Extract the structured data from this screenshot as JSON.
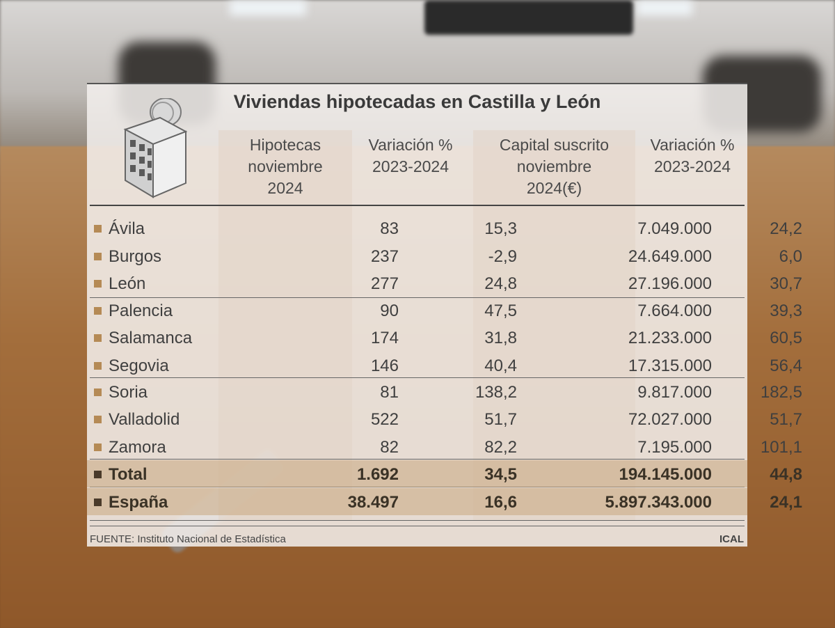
{
  "chart_data": {
    "type": "table",
    "title": "Viviendas hipotecadas en Castilla y León",
    "columns": [
      "",
      "Hipotecas noviembre 2024",
      "Variación % 2023-2024",
      "Capital suscrito noviembre 2024(€)",
      "Variación % 2023-2024"
    ],
    "header_lines": [
      [
        "Hipotecas",
        "noviembre",
        "2024"
      ],
      [
        "Variación %",
        "2023-2024"
      ],
      [
        "Capital suscrito",
        "noviembre",
        "2024(€)"
      ],
      [
        "Variación %",
        "2023-2024"
      ]
    ],
    "rows": [
      {
        "name": "Ávila",
        "hipotecas": "83",
        "var_hip": "15,3",
        "capital": "7.049.000",
        "var_cap": "24,2"
      },
      {
        "name": "Burgos",
        "hipotecas": "237",
        "var_hip": "-2,9",
        "capital": "24.649.000",
        "var_cap": "6,0"
      },
      {
        "name": "León",
        "hipotecas": "277",
        "var_hip": "24,8",
        "capital": "27.196.000",
        "var_cap": "30,7"
      },
      {
        "name": "Palencia",
        "hipotecas": "90",
        "var_hip": "47,5",
        "capital": "7.664.000",
        "var_cap": "39,3"
      },
      {
        "name": "Salamanca",
        "hipotecas": "174",
        "var_hip": "31,8",
        "capital": "21.233.000",
        "var_cap": "60,5"
      },
      {
        "name": "Segovia",
        "hipotecas": "146",
        "var_hip": "40,4",
        "capital": "17.315.000",
        "var_cap": "56,4"
      },
      {
        "name": "Soria",
        "hipotecas": "81",
        "var_hip": "138,2",
        "capital": "9.817.000",
        "var_cap": "182,5"
      },
      {
        "name": "Valladolid",
        "hipotecas": "522",
        "var_hip": "51,7",
        "capital": "72.027.000",
        "var_cap": "51,7"
      },
      {
        "name": "Zamora",
        "hipotecas": "82",
        "var_hip": "82,2",
        "capital": "7.195.000",
        "var_cap": "101,1"
      }
    ],
    "totals": [
      {
        "name": "Total",
        "hipotecas": "1.692",
        "var_hip": "34,5",
        "capital": "194.145.000",
        "var_cap": "44,8"
      },
      {
        "name": "España",
        "hipotecas": "38.497",
        "var_hip": "16,6",
        "capital": "5.897.343.000",
        "var_cap": "24,1"
      }
    ]
  },
  "source": "FUENTE: Instituto Nacional de Estadística",
  "brand": "ICAL",
  "colors": {
    "bullet": "#b58a55",
    "total_bullet": "#4a3a2a",
    "total_band": "#c8a880"
  }
}
